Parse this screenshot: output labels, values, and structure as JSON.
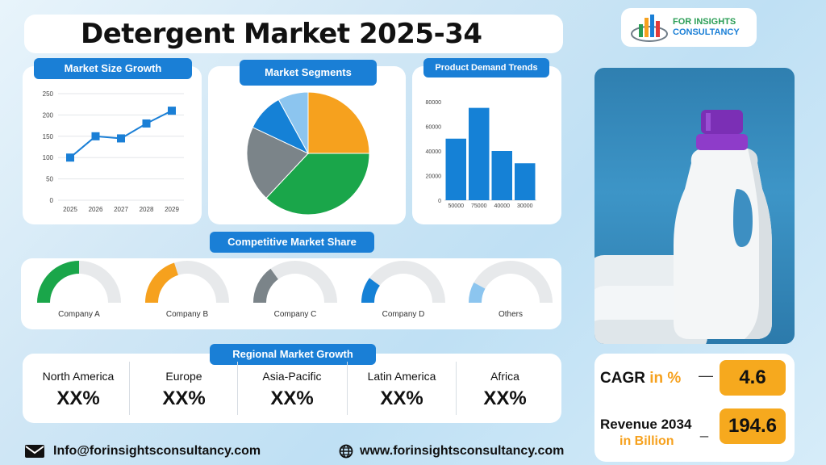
{
  "header": {
    "title": "Detergent Market 2025-34"
  },
  "logo": {
    "line1": "FOR INSIGHTS",
    "line2": "CONSULTANCY",
    "icon": "bar-chart-globe-logo"
  },
  "market_size": {
    "heading": "Market Size Growth",
    "chart_data": {
      "type": "line",
      "x": [
        "2025",
        "2026",
        "2027",
        "2028",
        "2029"
      ],
      "series": [
        {
          "values": [
            100,
            150,
            145,
            180,
            210
          ]
        }
      ],
      "ylim": [
        0,
        250
      ],
      "yticks": [
        "250",
        "200",
        "150",
        "100",
        "50",
        "0"
      ],
      "grid": true,
      "color": "#1a7fd6"
    }
  },
  "segments": {
    "heading": "Market Segments",
    "chart_data": {
      "type": "pie",
      "slices": [
        {
          "value": 25,
          "color": "#f6a11e"
        },
        {
          "value": 37,
          "color": "#1aa64a"
        },
        {
          "value": 20,
          "color": "#7b8489"
        },
        {
          "value": 10,
          "color": "#1581d6"
        },
        {
          "value": 8,
          "color": "#8cc5ef"
        }
      ]
    }
  },
  "demand": {
    "heading": "Product Demand Trends",
    "chart_data": {
      "type": "bar",
      "categories": [
        "50000",
        "75000",
        "40000",
        "30000"
      ],
      "values": [
        50000,
        75000,
        40000,
        30000
      ],
      "ylim": [
        0,
        80000
      ],
      "yticks": [
        "80000",
        "60000",
        "40000",
        "20000",
        "0"
      ],
      "color": "#1581d6"
    }
  },
  "competition": {
    "heading": "Competitive Market Share",
    "companies": [
      {
        "label": "Company A",
        "share": 0.25,
        "color": "#1aa64a"
      },
      {
        "label": "Company B",
        "share": 0.2,
        "color": "#f6a11e"
      },
      {
        "label": "Company C",
        "share": 0.15,
        "color": "#7b8489"
      },
      {
        "label": "Company D",
        "share": 0.1,
        "color": "#1581d6"
      },
      {
        "label": "Others",
        "share": 0.08,
        "color": "#8cc5ef"
      }
    ]
  },
  "regional": {
    "heading": "Regional Market Growth",
    "regions": [
      {
        "name": "North America",
        "value": "XX%"
      },
      {
        "name": "Europe",
        "value": "XX%"
      },
      {
        "name": "Asia-Pacific",
        "value": "XX%"
      },
      {
        "name": "Latin America",
        "value": "XX%"
      },
      {
        "name": "Africa",
        "value": "XX%"
      }
    ]
  },
  "stats": {
    "cagr_label": "CAGR",
    "cagr_unit": "in %",
    "cagr_value": "4.6",
    "revenue_label": "Revenue 2034",
    "revenue_unit": "in Billion",
    "revenue_value": "194.6",
    "dash": "—",
    "dash2": "_"
  },
  "footer": {
    "email": "Info@forinsightsconsultancy.com",
    "website": "www.forinsightsconsultancy.com"
  },
  "colors": {
    "accent": "#1a7fd6",
    "highlight": "#f6a91e"
  }
}
